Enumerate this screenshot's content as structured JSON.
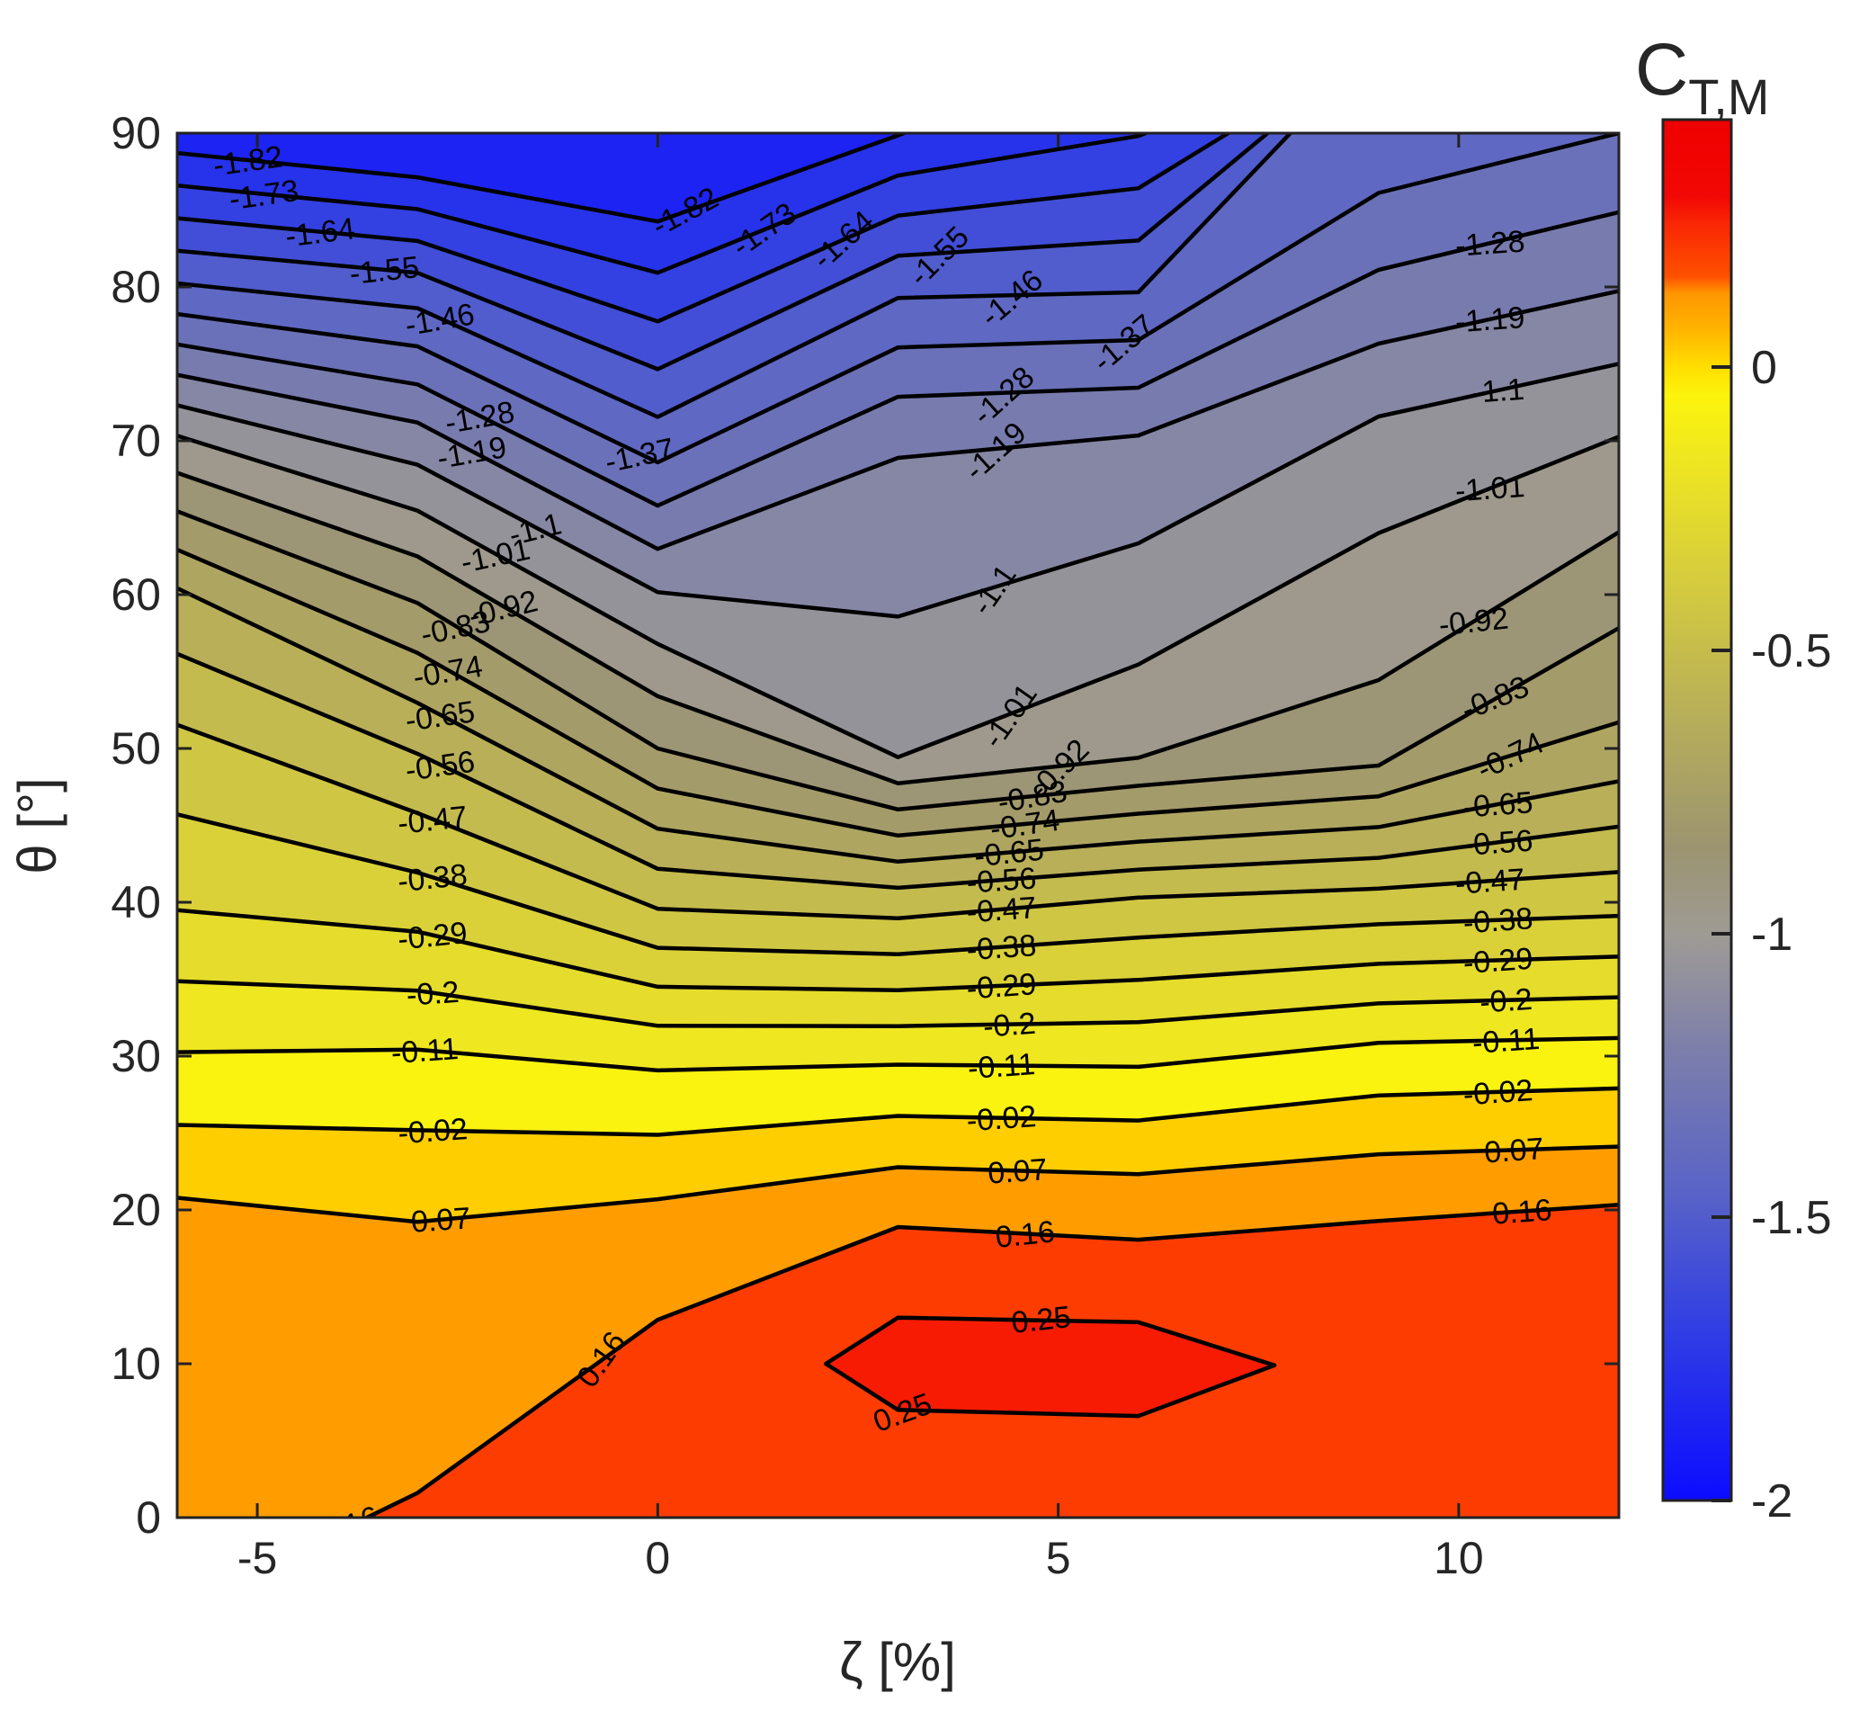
{
  "title": {
    "colorbar_title_main": "C",
    "colorbar_title_sub": "T,M"
  },
  "x_axis": {
    "label": "ζ [%]",
    "ticks": [
      -5,
      0,
      5,
      10
    ],
    "range": [
      -6,
      12
    ]
  },
  "y_axis": {
    "label": "θ [°]",
    "ticks": [
      0,
      10,
      20,
      30,
      40,
      50,
      60,
      70,
      80,
      90
    ],
    "range": [
      0,
      90
    ]
  },
  "colorbar": {
    "ticks": [
      0,
      -0.5,
      -1,
      -1.5,
      -2
    ],
    "range": [
      -2,
      0.4365
    ],
    "title_main": "C",
    "title_sub": "T,M"
  },
  "chart_data": {
    "type": "filled-contour",
    "title": "",
    "xlabel": "ζ [%]",
    "ylabel": "θ [°]",
    "zlabel": "C_T,M",
    "x": [
      -6,
      -3,
      0,
      3,
      6,
      9,
      12
    ],
    "y": [
      0,
      10,
      20,
      30,
      40,
      50,
      60,
      70,
      80,
      90
    ],
    "values_by_column": [
      [
        0.155,
        0.115,
        0.085,
        -0.105,
        -0.3,
        -0.44,
        -0.635,
        -0.995,
        -1.45,
        -1.875
      ],
      [
        0.168,
        0.118,
        0.066,
        -0.1,
        -0.335,
        -0.568,
        -0.845,
        -1.147,
        -1.51,
        -1.945
      ],
      [
        0.175,
        0.19,
        0.085,
        -0.13,
        -0.485,
        -0.83,
        -1.095,
        -1.415,
        -1.705,
        -1.975
      ],
      [
        0.195,
        0.28,
        0.145,
        -0.125,
        -0.51,
        -1.04,
        -1.11,
        -1.2,
        -1.48,
        -1.825
      ],
      [
        0.2,
        0.285,
        0.13,
        -0.128,
        -0.455,
        -0.95,
        -1.06,
        -1.18,
        -1.47,
        -1.735
      ],
      [
        0.205,
        0.225,
        0.155,
        -0.08,
        -0.43,
        -0.88,
        -0.97,
        -1.07,
        -1.26,
        -1.44
      ],
      [
        0.21,
        0.22,
        0.168,
        -0.07,
        -0.41,
        -0.715,
        -0.862,
        -1.005,
        -1.195,
        -1.37
      ]
    ],
    "levels": [
      -1.82,
      -1.73,
      -1.64,
      -1.55,
      -1.46,
      -1.37,
      -1.28,
      -1.19,
      -1.1,
      -1.01,
      -0.92,
      -0.83,
      -0.74,
      -0.65,
      -0.56,
      -0.47,
      -0.38,
      -0.29,
      -0.2,
      -0.11,
      -0.02,
      0.07,
      0.16
    ],
    "level_step": 0.09,
    "contour_labels": {
      "-1.82": [
        {
          "z": -5.1,
          "rot": -8
        },
        {
          "z": 0.4,
          "rot": -28
        }
      ],
      "-1.73": [
        {
          "z": -4.9,
          "rot": -8
        },
        {
          "z": 1.4,
          "rot": -35
        }
      ],
      "-1.64": [
        {
          "z": -4.2,
          "rot": -7
        },
        {
          "z": 2.4,
          "rot": -42
        }
      ],
      "-1.55": [
        {
          "z": -3.4,
          "rot": -6
        },
        {
          "z": 3.6,
          "rot": -45
        }
      ],
      "-1.46": [
        {
          "z": -2.7,
          "rot": -10
        },
        {
          "z": 4.5,
          "rot": -40
        }
      ],
      "-1.37": [
        {
          "z": -0.2,
          "rot": -12
        },
        {
          "z": 5.9,
          "rot": -40
        }
      ],
      "-1.28": [
        {
          "z": -2.2,
          "rot": -10
        },
        {
          "z": 4.4,
          "rot": -42
        },
        {
          "z": 10.4,
          "rot": -4
        }
      ],
      "-1.19": [
        {
          "z": -2.3,
          "rot": -10
        },
        {
          "z": 4.3,
          "rot": -42
        },
        {
          "z": 10.4,
          "rot": -4
        }
      ],
      "-1.1": [
        {
          "z": -1.5,
          "rot": -14
        },
        {
          "z": 4.3,
          "rot": -55
        },
        {
          "z": 10.5,
          "rot": -4
        }
      ],
      "-1.01": [
        {
          "z": -2.0,
          "rot": -12
        },
        {
          "z": 4.5,
          "rot": -55
        },
        {
          "z": 10.4,
          "rot": -4
        }
      ],
      "-0.92": [
        {
          "z": -1.9,
          "rot": -14
        },
        {
          "z": 5.1,
          "rot": -45
        },
        {
          "z": 10.2,
          "rot": -6
        }
      ],
      "-0.83": [
        {
          "z": -2.5,
          "rot": -12
        },
        {
          "z": 4.7,
          "rot": -10
        },
        {
          "z": 10.5,
          "rot": -22
        }
      ],
      "-0.74": [
        {
          "z": -2.6,
          "rot": -10
        },
        {
          "z": 4.6,
          "rot": -8
        },
        {
          "z": 10.7,
          "rot": -26
        }
      ],
      "-0.65": [
        {
          "z": -2.7,
          "rot": -8
        },
        {
          "z": 4.4,
          "rot": -6
        },
        {
          "z": 10.5,
          "rot": -4
        }
      ],
      "-0.56": [
        {
          "z": -2.7,
          "rot": -8
        },
        {
          "z": 4.3,
          "rot": -4
        },
        {
          "z": 10.5,
          "rot": -4
        }
      ],
      "-0.47": [
        {
          "z": -2.8,
          "rot": -6
        },
        {
          "z": 4.3,
          "rot": -4
        },
        {
          "z": 10.4,
          "rot": -4
        }
      ],
      "-0.38": [
        {
          "z": -2.8,
          "rot": -6
        },
        {
          "z": 4.3,
          "rot": -4
        },
        {
          "z": 10.5,
          "rot": -4
        }
      ],
      "-0.29": [
        {
          "z": -2.8,
          "rot": -6
        },
        {
          "z": 4.3,
          "rot": -4
        },
        {
          "z": 10.5,
          "rot": -4
        }
      ],
      "-0.2": [
        {
          "z": -2.8,
          "rot": -4
        },
        {
          "z": 4.4,
          "rot": -4
        },
        {
          "z": 10.6,
          "rot": -4
        }
      ],
      "-0.11": [
        {
          "z": -2.9,
          "rot": -4
        },
        {
          "z": 4.3,
          "rot": -4
        },
        {
          "z": 10.6,
          "rot": -4
        }
      ],
      "-0.02": [
        {
          "z": -2.8,
          "rot": -4
        },
        {
          "z": 4.3,
          "rot": -4
        },
        {
          "z": 10.5,
          "rot": -4
        }
      ],
      "0.07": [
        {
          "z": -2.7,
          "rot": -4
        },
        {
          "z": 4.5,
          "rot": -4
        },
        {
          "z": 10.7,
          "rot": -4
        }
      ],
      "0.16": [
        {
          "z": -3.8,
          "rot": -20
        },
        {
          "z": -0.6,
          "rot": -55
        },
        {
          "z": 4.6,
          "rot": -6
        },
        {
          "z": 10.8,
          "rot": -4
        }
      ]
    },
    "inner_max_region": {
      "level": 0.25,
      "label": "0.25",
      "polygon": [
        [
          2.1,
          10
        ],
        [
          3.0,
          13.0
        ],
        [
          6.0,
          12.7
        ],
        [
          7.7,
          9.9
        ],
        [
          6.0,
          6.6
        ],
        [
          3.0,
          7.0
        ]
      ],
      "labels": [
        {
          "z": 4.8,
          "t": 12.9,
          "rot": -6
        },
        {
          "z": 3.1,
          "t": 6.9,
          "rot": -20
        }
      ]
    },
    "colormap_stops": [
      {
        "v": 0.44,
        "rgb": [
          239,
          0,
          0
        ]
      },
      {
        "v": 0.3,
        "rgb": [
          242,
          8,
          4
        ]
      },
      {
        "v": 0.25,
        "rgb": [
          250,
          40,
          4
        ]
      },
      {
        "v": 0.16,
        "rgb": [
          255,
          80,
          0
        ]
      },
      {
        "v": 0.13,
        "rgb": [
          255,
          150,
          0
        ]
      },
      {
        "v": 0.07,
        "rgb": [
          255,
          178,
          0
        ]
      },
      {
        "v": 0.0,
        "rgb": [
          255,
          222,
          0
        ]
      },
      {
        "v": -0.05,
        "rgb": [
          252,
          244,
          12
        ]
      },
      {
        "v": -0.15,
        "rgb": [
          240,
          232,
          30
        ]
      },
      {
        "v": -0.35,
        "rgb": [
          216,
          207,
          58
        ]
      },
      {
        "v": -0.6,
        "rgb": [
          185,
          176,
          88
        ]
      },
      {
        "v": -0.85,
        "rgb": [
          156,
          148,
          112
        ]
      },
      {
        "v": -1.0,
        "rgb": [
          158,
          155,
          148
        ]
      },
      {
        "v": -1.2,
        "rgb": [
          125,
          127,
          170
        ]
      },
      {
        "v": -1.45,
        "rgb": [
          90,
          100,
          198
        ]
      },
      {
        "v": -1.7,
        "rgb": [
          48,
          62,
          228
        ]
      },
      {
        "v": -2.0,
        "rgb": [
          12,
          12,
          255
        ]
      }
    ],
    "line_color": "#000000",
    "frame_color": "#222222",
    "legend_position": "right-colorbar",
    "grid": false
  }
}
